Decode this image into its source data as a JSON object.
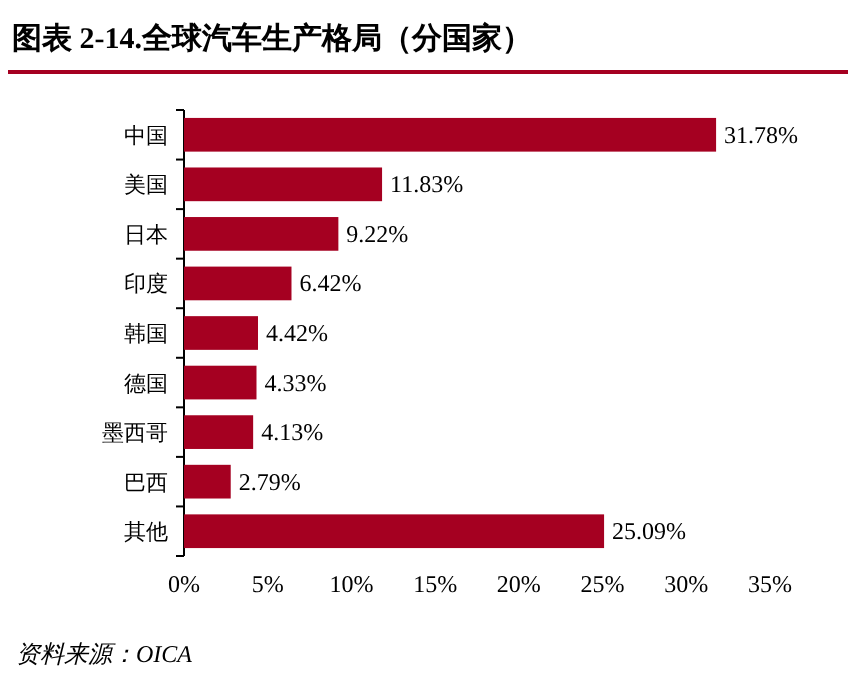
{
  "chart_data": {
    "type": "bar",
    "orientation": "horizontal",
    "title": "图表 2-14.全球汽车生产格局（分国家）",
    "categories": [
      "中国",
      "美国",
      "日本",
      "印度",
      "韩国",
      "德国",
      "墨西哥",
      "巴西",
      "其他"
    ],
    "values": [
      31.78,
      11.83,
      9.22,
      6.42,
      4.42,
      4.33,
      4.13,
      2.79,
      25.09
    ],
    "value_labels": [
      "31.78%",
      "11.83%",
      "9.22%",
      "6.42%",
      "4.42%",
      "4.33%",
      "4.13%",
      "2.79%",
      "25.09%"
    ],
    "color": "#a50021",
    "xlim": [
      0,
      35
    ],
    "xticks": [
      {
        "value": 0,
        "label": "0%"
      },
      {
        "value": 5,
        "label": "5%"
      },
      {
        "value": 10,
        "label": "10%"
      },
      {
        "value": 15,
        "label": "15%"
      },
      {
        "value": 20,
        "label": "20%"
      },
      {
        "value": 25,
        "label": "25%"
      },
      {
        "value": 30,
        "label": "30%"
      },
      {
        "value": 35,
        "label": "35%"
      }
    ],
    "annotations": [
      "资料来源：OICA"
    ]
  }
}
